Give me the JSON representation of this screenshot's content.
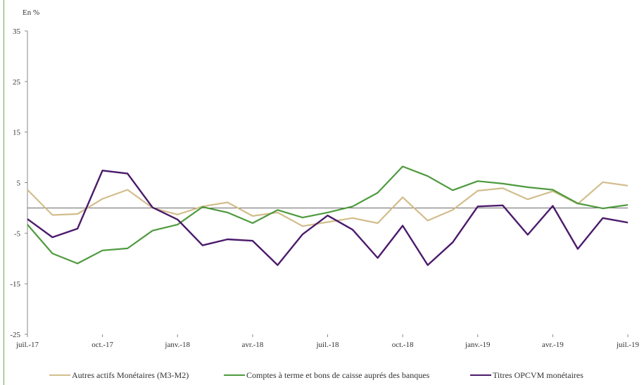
{
  "chart_data": {
    "type": "line",
    "ylabel": "En %",
    "ylim": [
      -25,
      35
    ],
    "yticks": [
      35,
      25,
      15,
      5,
      -5,
      -15,
      -25
    ],
    "zero_line": true,
    "grid": false,
    "legend_position": "bottom",
    "x": [
      "juil.-17",
      "août-17",
      "sept.-17",
      "oct.-17",
      "nov.-17",
      "déc.-17",
      "janv.-18",
      "févr.-18",
      "mars-18",
      "avr.-18",
      "mai-18",
      "juin-18",
      "juil.-18",
      "août-18",
      "sept.-18",
      "oct.-18",
      "nov.-18",
      "déc.-18",
      "janv.-19",
      "févr.-19",
      "mars-19",
      "avr.-19",
      "mai-19",
      "juin-19",
      "juil.-19"
    ],
    "xtick_labels": [
      "juil.-17",
      "oct.-17",
      "janv.-18",
      "avr.-18",
      "juil.-18",
      "oct.-18",
      "janv.-19",
      "avr.-19",
      "juil.-19"
    ],
    "xtick_indices": [
      0,
      3,
      6,
      9,
      12,
      15,
      18,
      21,
      24
    ],
    "series": [
      {
        "name": "Autres actifs Monétaires (M3-M2)",
        "color": "#d2bd8c",
        "values": [
          3.6,
          -1.4,
          -1.2,
          1.8,
          3.6,
          0.0,
          -1.3,
          0.3,
          1.1,
          -1.6,
          -0.9,
          -3.6,
          -2.8,
          -2.0,
          -3.0,
          2.1,
          -2.5,
          -0.4,
          3.4,
          3.9,
          1.7,
          3.3,
          0.8,
          5.1,
          4.4
        ]
      },
      {
        "name": "Comptes à terme et bons de caisse auprés des banques",
        "color": "#4e9a3e",
        "values": [
          -3.3,
          -9.0,
          -11.0,
          -8.4,
          -8.0,
          -4.5,
          -3.3,
          0.2,
          -0.9,
          -3.0,
          -0.4,
          -1.9,
          -0.9,
          0.3,
          3.0,
          8.2,
          6.3,
          3.5,
          5.3,
          4.8,
          4.1,
          3.6,
          0.9,
          -0.1,
          0.6
        ]
      },
      {
        "name": "Titres OPCVM monétaires",
        "color": "#4b1a6b",
        "values": [
          -2.2,
          -5.8,
          -4.1,
          7.4,
          6.8,
          0.1,
          -2.3,
          -7.4,
          -6.2,
          -6.5,
          -11.3,
          -5.2,
          -1.5,
          -4.3,
          -9.9,
          -3.5,
          -11.3,
          -6.8,
          0.3,
          0.5,
          -5.3,
          0.4,
          -8.1,
          -2.0,
          -2.9
        ]
      }
    ]
  }
}
